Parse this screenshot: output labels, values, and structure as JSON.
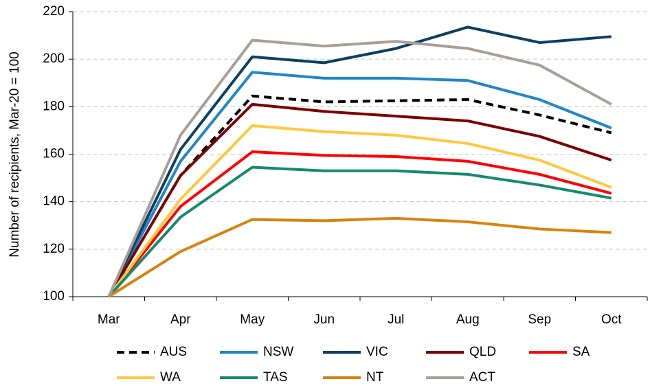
{
  "chart_data": {
    "type": "line",
    "y_label": "Number of recipients, Mar-20 = 100",
    "categories": [
      "Mar",
      "Apr",
      "May",
      "Jun",
      "Jul",
      "Aug",
      "Sep",
      "Oct"
    ],
    "ylim": [
      100,
      220
    ],
    "yticks": [
      100,
      120,
      140,
      160,
      180,
      200,
      220
    ],
    "grid": true,
    "legend": "bottom",
    "series": [
      {
        "name": "AUS",
        "color": "#000000",
        "style": "dashed",
        "values": [
          100,
          151,
          184.5,
          182,
          182.5,
          183,
          176.5,
          169
        ]
      },
      {
        "name": "NSW",
        "color": "#1f86c8",
        "values": [
          100,
          157,
          194.5,
          192,
          192,
          191,
          183,
          171
        ]
      },
      {
        "name": "VIC",
        "color": "#0c3f63",
        "values": [
          100,
          162,
          201,
          198.5,
          204.5,
          213.5,
          207,
          209.5
        ]
      },
      {
        "name": "QLD",
        "color": "#7b0000",
        "values": [
          100,
          151,
          181,
          178,
          176,
          174,
          167.5,
          157.5
        ]
      },
      {
        "name": "SA",
        "color": "#ff0000",
        "values": [
          100,
          138,
          161,
          159.5,
          159,
          157,
          151.5,
          143.5
        ]
      },
      {
        "name": "WA",
        "color": "#ffc83d",
        "values": [
          100,
          141,
          172,
          169.5,
          168,
          164.5,
          157.5,
          146
        ]
      },
      {
        "name": "TAS",
        "color": "#138a6f",
        "values": [
          100,
          133.5,
          154.5,
          153,
          153,
          151.5,
          147,
          141.5
        ]
      },
      {
        "name": "NT",
        "color": "#d9820b",
        "values": [
          100,
          119,
          132.5,
          132,
          133,
          131.5,
          128.5,
          127
        ]
      },
      {
        "name": "ACT",
        "color": "#a89f98",
        "values": [
          100,
          168,
          208,
          205.5,
          207.5,
          204.5,
          197.5,
          181
        ]
      }
    ]
  }
}
